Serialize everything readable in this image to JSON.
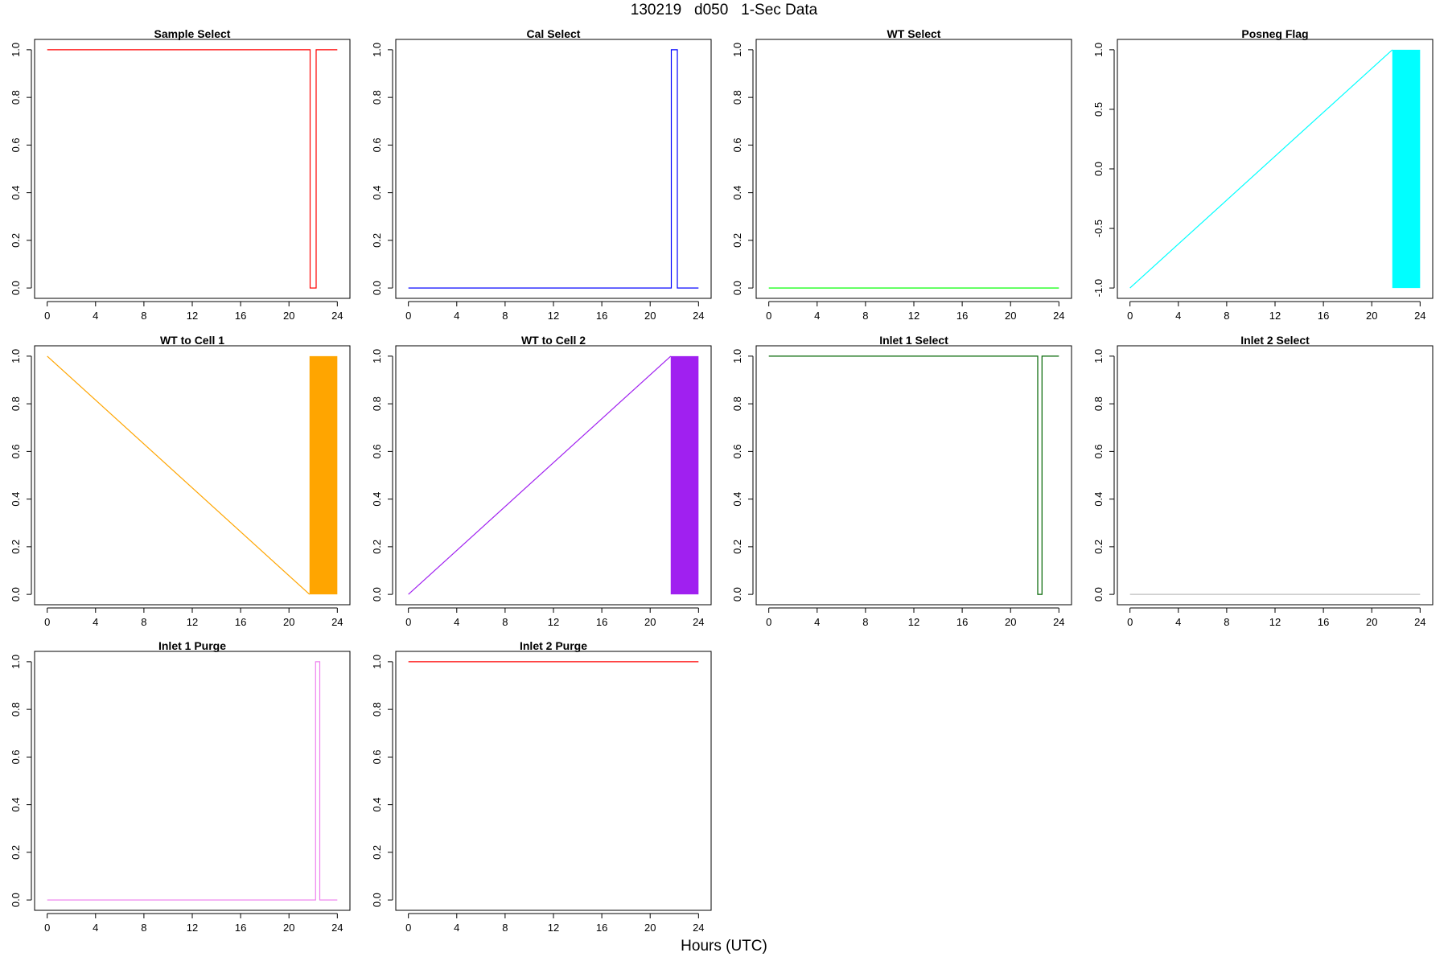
{
  "figure": {
    "title": "130219   d050   1-Sec Data",
    "xlabel": "Hours (UTC)"
  },
  "chart_data": [
    {
      "type": "line",
      "title": "Sample Select",
      "color": "#ff0000",
      "xlim": [
        0,
        24
      ],
      "ylim": [
        0,
        1
      ],
      "xticks": [
        0,
        4,
        8,
        12,
        16,
        20,
        24
      ],
      "yticks": [
        0.0,
        0.2,
        0.4,
        0.6,
        0.8,
        1.0
      ],
      "ytick_labels": [
        "0.0",
        "0.2",
        "0.4",
        "0.6",
        "0.8",
        "1.0"
      ],
      "x": [
        0,
        21.75,
        21.75,
        22.25,
        22.25,
        24
      ],
      "y": [
        1,
        1,
        0,
        0,
        1,
        1
      ]
    },
    {
      "type": "line",
      "title": "Cal Select",
      "color": "#0000ff",
      "xlim": [
        0,
        24
      ],
      "ylim": [
        0,
        1
      ],
      "xticks": [
        0,
        4,
        8,
        12,
        16,
        20,
        24
      ],
      "yticks": [
        0.0,
        0.2,
        0.4,
        0.6,
        0.8,
        1.0
      ],
      "ytick_labels": [
        "0.0",
        "0.2",
        "0.4",
        "0.6",
        "0.8",
        "1.0"
      ],
      "x": [
        0,
        21.75,
        21.75,
        22.25,
        22.25,
        24
      ],
      "y": [
        0,
        0,
        1,
        1,
        0,
        0
      ]
    },
    {
      "type": "line",
      "title": "WT Select",
      "color": "#00ff00",
      "xlim": [
        0,
        24
      ],
      "ylim": [
        0,
        1
      ],
      "xticks": [
        0,
        4,
        8,
        12,
        16,
        20,
        24
      ],
      "yticks": [
        0.0,
        0.2,
        0.4,
        0.6,
        0.8,
        1.0
      ],
      "ytick_labels": [
        "0.0",
        "0.2",
        "0.4",
        "0.6",
        "0.8",
        "1.0"
      ],
      "x": [
        0,
        24
      ],
      "y": [
        0,
        0
      ]
    },
    {
      "type": "line",
      "title": "Posneg Flag",
      "color": "#00ffff",
      "xlim": [
        0,
        24
      ],
      "ylim": [
        -1,
        1
      ],
      "xticks": [
        0,
        4,
        8,
        12,
        16,
        20,
        24
      ],
      "yticks": [
        -1.0,
        -0.5,
        0.0,
        0.5,
        1.0
      ],
      "ytick_labels": [
        "-1.0",
        "-0.5",
        "0.0",
        "0.5",
        "1.0"
      ],
      "x": [
        0,
        21.7
      ],
      "y": [
        -1,
        1
      ],
      "band": {
        "x0": 21.7,
        "x1": 24,
        "y0": -1,
        "y1": 1
      }
    },
    {
      "type": "line",
      "title": "WT to Cell 1",
      "color": "#ffa500",
      "xlim": [
        0,
        24
      ],
      "ylim": [
        0,
        1
      ],
      "xticks": [
        0,
        4,
        8,
        12,
        16,
        20,
        24
      ],
      "yticks": [
        0.0,
        0.2,
        0.4,
        0.6,
        0.8,
        1.0
      ],
      "ytick_labels": [
        "0.0",
        "0.2",
        "0.4",
        "0.6",
        "0.8",
        "1.0"
      ],
      "x": [
        0,
        21.7
      ],
      "y": [
        1,
        0
      ],
      "band": {
        "x0": 21.7,
        "x1": 24,
        "y0": 0,
        "y1": 1
      }
    },
    {
      "type": "line",
      "title": "WT to Cell 2",
      "color": "#a020f0",
      "xlim": [
        0,
        24
      ],
      "ylim": [
        0,
        1
      ],
      "xticks": [
        0,
        4,
        8,
        12,
        16,
        20,
        24
      ],
      "yticks": [
        0.0,
        0.2,
        0.4,
        0.6,
        0.8,
        1.0
      ],
      "ytick_labels": [
        "0.0",
        "0.2",
        "0.4",
        "0.6",
        "0.8",
        "1.0"
      ],
      "x": [
        0,
        21.7
      ],
      "y": [
        0,
        1
      ],
      "band": {
        "x0": 21.7,
        "x1": 24,
        "y0": 0,
        "y1": 1
      }
    },
    {
      "type": "line",
      "title": "Inlet 1 Select",
      "color": "#006400",
      "xlim": [
        0,
        24
      ],
      "ylim": [
        0,
        1
      ],
      "xticks": [
        0,
        4,
        8,
        12,
        16,
        20,
        24
      ],
      "yticks": [
        0.0,
        0.2,
        0.4,
        0.6,
        0.8,
        1.0
      ],
      "ytick_labels": [
        "0.0",
        "0.2",
        "0.4",
        "0.6",
        "0.8",
        "1.0"
      ],
      "x": [
        0,
        22.25,
        22.25,
        22.6,
        22.6,
        24
      ],
      "y": [
        1,
        1,
        0,
        0,
        1,
        1
      ]
    },
    {
      "type": "line",
      "title": "Inlet 2 Select",
      "color": "#bebebe",
      "xlim": [
        0,
        24
      ],
      "ylim": [
        0,
        1
      ],
      "xticks": [
        0,
        4,
        8,
        12,
        16,
        20,
        24
      ],
      "yticks": [
        0.0,
        0.2,
        0.4,
        0.6,
        0.8,
        1.0
      ],
      "ytick_labels": [
        "0.0",
        "0.2",
        "0.4",
        "0.6",
        "0.8",
        "1.0"
      ],
      "x": [
        0,
        24
      ],
      "y": [
        0,
        0
      ]
    },
    {
      "type": "line",
      "title": "Inlet 1 Purge",
      "color": "#ee82ee",
      "xlim": [
        0,
        24
      ],
      "ylim": [
        0,
        1
      ],
      "xticks": [
        0,
        4,
        8,
        12,
        16,
        20,
        24
      ],
      "yticks": [
        0.0,
        0.2,
        0.4,
        0.6,
        0.8,
        1.0
      ],
      "ytick_labels": [
        "0.0",
        "0.2",
        "0.4",
        "0.6",
        "0.8",
        "1.0"
      ],
      "x": [
        0,
        22.2,
        22.2,
        22.55,
        22.55,
        24
      ],
      "y": [
        0,
        0,
        1,
        1,
        0,
        0
      ]
    },
    {
      "type": "line",
      "title": "Inlet 2 Purge",
      "color": "#ff0000",
      "xlim": [
        0,
        24
      ],
      "ylim": [
        0,
        1
      ],
      "xticks": [
        0,
        4,
        8,
        12,
        16,
        20,
        24
      ],
      "yticks": [
        0.0,
        0.2,
        0.4,
        0.6,
        0.8,
        1.0
      ],
      "ytick_labels": [
        "0.0",
        "0.2",
        "0.4",
        "0.6",
        "0.8",
        "1.0"
      ],
      "x": [
        0,
        24
      ],
      "y": [
        1,
        1
      ]
    }
  ]
}
